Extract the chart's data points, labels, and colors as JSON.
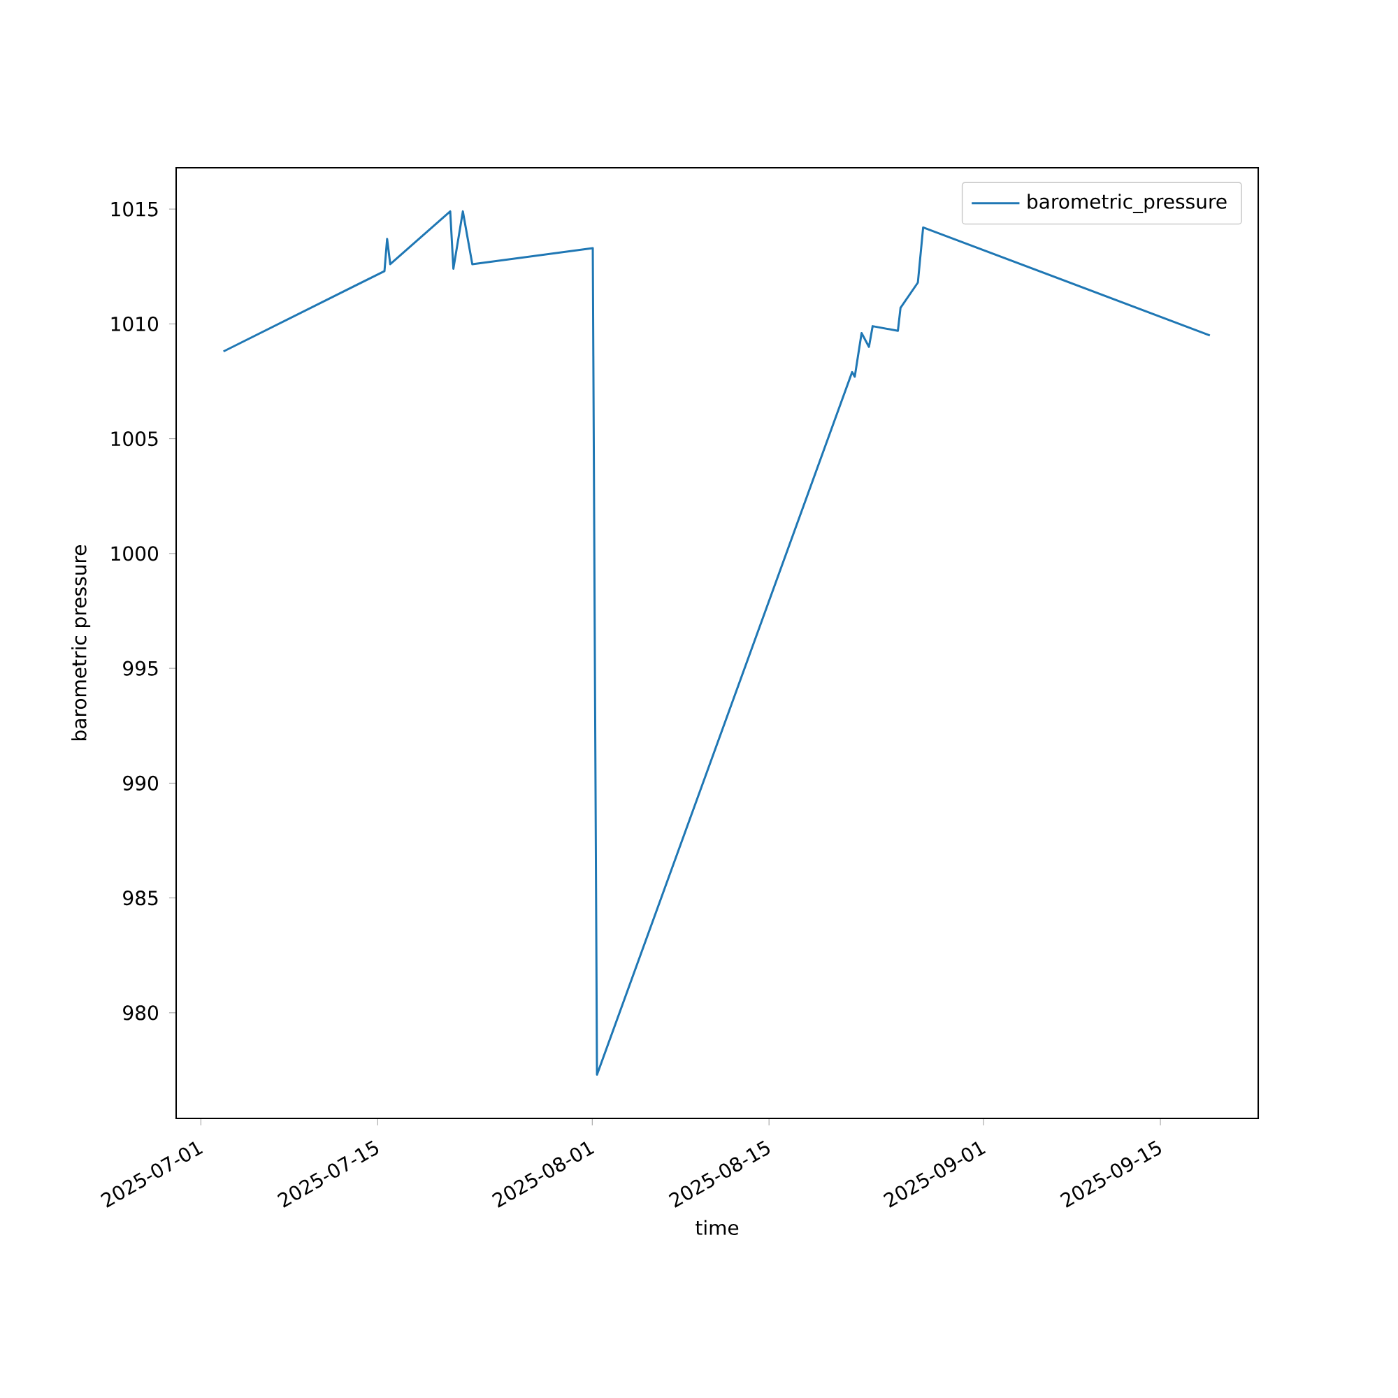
{
  "chart_data": {
    "type": "line",
    "xlabel": "time",
    "ylabel": "barometric pressure",
    "x": [
      "2025-07-02T19:00",
      "2025-07-15T13:00",
      "2025-07-15T18:00",
      "2025-07-16T00:00",
      "2025-07-20T18:00",
      "2025-07-21T00:00",
      "2025-07-21T18:00",
      "2025-07-22T12:00",
      "2025-08-01T01:00",
      "2025-08-01T09:00",
      "2025-08-21T14:00",
      "2025-08-21T19:00",
      "2025-08-22T08:00",
      "2025-08-22T22:00",
      "2025-08-23T05:00",
      "2025-08-25T05:00",
      "2025-08-25T10:00",
      "2025-08-26T19:00",
      "2025-08-27T05:00",
      "2025-09-18T22:00"
    ],
    "series": [
      {
        "name": "barometric_pressure",
        "color": "#1f77b4",
        "values": [
          1008.8,
          1012.3,
          1013.7,
          1012.6,
          1014.9,
          1012.4,
          1014.9,
          1012.6,
          1013.3,
          977.3,
          1007.9,
          1007.7,
          1009.6,
          1009.0,
          1009.9,
          1009.7,
          1010.7,
          1011.8,
          1014.2,
          1009.5
        ]
      }
    ],
    "xlim": [
      "2025-06-29T01:00",
      "2025-09-22T18:00"
    ],
    "xticks": [
      "2025-07-01",
      "2025-07-15",
      "2025-08-01",
      "2025-08-15",
      "2025-09-01",
      "2025-09-15"
    ],
    "ylim": [
      975.4,
      1016.8
    ],
    "yticks": [
      980,
      985,
      990,
      995,
      1000,
      1005,
      1010,
      1015
    ],
    "legend": "top right",
    "grid": false,
    "marker": "none",
    "line_style": "solid"
  }
}
